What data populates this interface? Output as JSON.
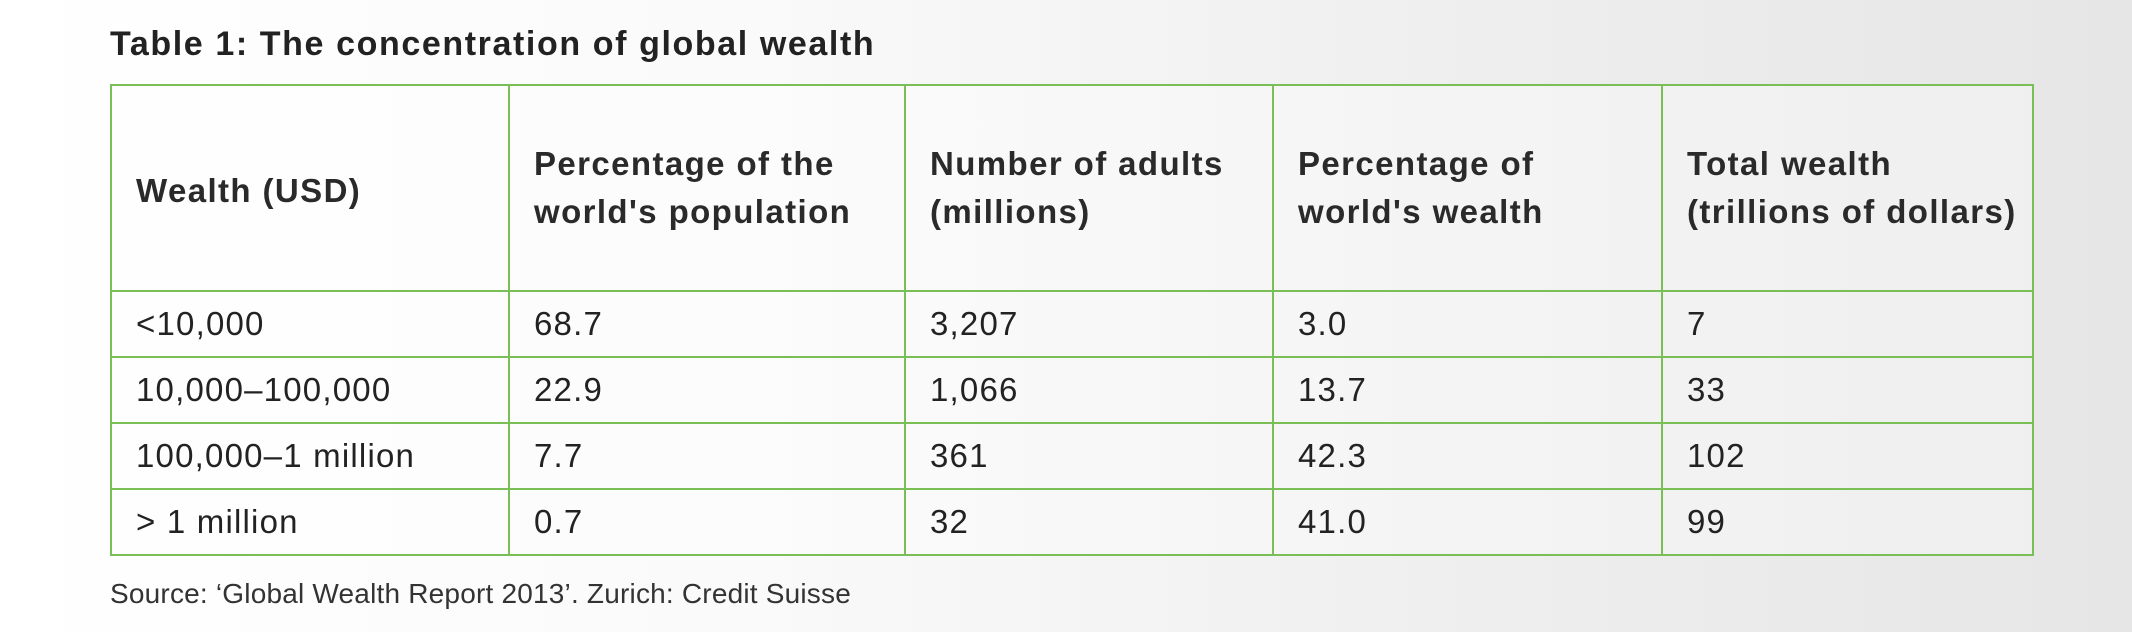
{
  "table_title": "Table 1: The concentration of global wealth",
  "table": {
    "headers": [
      "Wealth (USD)",
      "Percentage of the world's population",
      "Number of adults (millions)",
      "Percentage of world's wealth",
      "Total wealth (trillions of dollars)"
    ],
    "rows": [
      [
        "<10,000",
        "68.7",
        "3,207",
        "3.0",
        "7"
      ],
      [
        "10,000–100,000",
        "22.9",
        "1,066",
        "13.7",
        "33"
      ],
      [
        "100,000–1 million",
        "7.7",
        "361",
        "42.3",
        "102"
      ],
      [
        "> 1 million",
        "0.7",
        "32",
        "41.0",
        "99"
      ]
    ]
  },
  "source": "Source: ‘Global Wealth Report 2013’. Zurich: Credit Suisse",
  "colors": {
    "border": "#79bf56",
    "text": "#222222"
  }
}
